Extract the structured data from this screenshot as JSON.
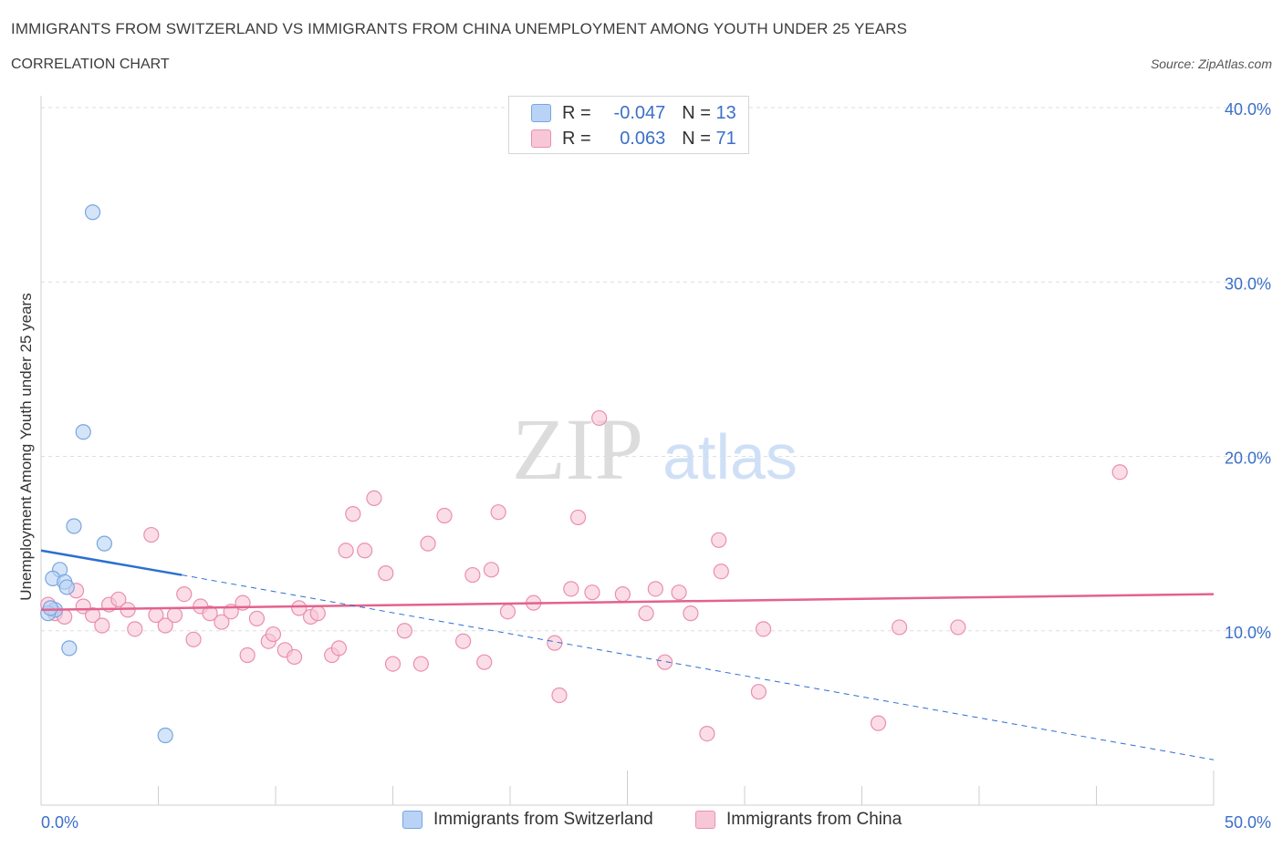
{
  "title": "IMMIGRANTS FROM SWITZERLAND VS IMMIGRANTS FROM CHINA UNEMPLOYMENT AMONG YOUTH UNDER 25 YEARS",
  "subtitle": "CORRELATION CHART",
  "source": "Source: ZipAtlas.com",
  "watermark": {
    "zip": "ZIP",
    "atlas": "atlas"
  },
  "colors": {
    "switzerland_fill": "#b8d3f5",
    "switzerland_stroke": "#7aa5e0",
    "switzerland_line": "#2c6fd1",
    "china_fill": "#f8c7d7",
    "china_stroke": "#ea8fae",
    "china_line": "#e3628e",
    "axis_text": "#3b6fc9",
    "grid": "#dedede"
  },
  "legend": {
    "rows": [
      {
        "r_label": "R =",
        "r_value": "-0.047",
        "n_label": "N =",
        "n_value": "13"
      },
      {
        "r_label": "R =",
        "r_value": "0.063",
        "n_label": "N =",
        "n_value": "71"
      }
    ]
  },
  "bottom_legend": {
    "switzerland": "Immigrants from Switzerland",
    "china": "Immigrants from China"
  },
  "chart_data": {
    "type": "scatter",
    "xlabel": "",
    "ylabel": "Unemployment Among Youth under 25 years",
    "xlim": [
      0,
      50
    ],
    "ylim": [
      0,
      40
    ],
    "x_tick_labels": [
      "0.0%",
      "50.0%"
    ],
    "y_ticks": [
      10,
      20,
      30,
      40
    ],
    "y_tick_labels": [
      "10.0%",
      "20.0%",
      "30.0%",
      "40.0%"
    ],
    "grid": true,
    "legend_position": "top-center",
    "series": [
      {
        "name": "Immigrants from Switzerland",
        "points": [
          [
            2.2,
            34.0
          ],
          [
            1.8,
            21.4
          ],
          [
            1.4,
            16.0
          ],
          [
            2.7,
            15.0
          ],
          [
            0.8,
            13.5
          ],
          [
            0.5,
            13.0
          ],
          [
            1.0,
            12.8
          ],
          [
            1.1,
            12.5
          ],
          [
            0.6,
            11.2
          ],
          [
            0.3,
            11.0
          ],
          [
            0.4,
            11.3
          ],
          [
            1.2,
            9.0
          ],
          [
            5.3,
            4.0
          ]
        ],
        "trend": {
          "x": [
            0,
            6
          ],
          "y": [
            14.6,
            13.2
          ],
          "dashed_extension": {
            "x": [
              6,
              50
            ],
            "y": [
              13.2,
              2.6
            ]
          }
        }
      },
      {
        "name": "Immigrants from China",
        "points": [
          [
            0.3,
            11.5
          ],
          [
            0.6,
            11.0
          ],
          [
            1.0,
            10.8
          ],
          [
            1.5,
            12.3
          ],
          [
            1.8,
            11.4
          ],
          [
            2.2,
            10.9
          ],
          [
            2.6,
            10.3
          ],
          [
            2.9,
            11.5
          ],
          [
            3.3,
            11.8
          ],
          [
            3.7,
            11.2
          ],
          [
            4.0,
            10.1
          ],
          [
            4.7,
            15.5
          ],
          [
            4.9,
            10.9
          ],
          [
            5.3,
            10.3
          ],
          [
            5.7,
            10.9
          ],
          [
            6.1,
            12.1
          ],
          [
            6.5,
            9.5
          ],
          [
            6.8,
            11.4
          ],
          [
            7.2,
            11.0
          ],
          [
            7.7,
            10.5
          ],
          [
            8.1,
            11.1
          ],
          [
            8.6,
            11.6
          ],
          [
            8.8,
            8.6
          ],
          [
            9.2,
            10.7
          ],
          [
            9.7,
            9.4
          ],
          [
            9.9,
            9.8
          ],
          [
            10.4,
            8.9
          ],
          [
            10.8,
            8.5
          ],
          [
            11.0,
            11.3
          ],
          [
            11.5,
            10.8
          ],
          [
            11.8,
            11.0
          ],
          [
            12.4,
            8.6
          ],
          [
            12.7,
            9.0
          ],
          [
            13.0,
            14.6
          ],
          [
            13.3,
            16.7
          ],
          [
            13.8,
            14.6
          ],
          [
            14.2,
            17.6
          ],
          [
            14.7,
            13.3
          ],
          [
            15.0,
            8.1
          ],
          [
            15.5,
            10.0
          ],
          [
            16.2,
            8.1
          ],
          [
            16.5,
            15.0
          ],
          [
            17.2,
            16.6
          ],
          [
            18.0,
            9.4
          ],
          [
            18.4,
            13.2
          ],
          [
            18.9,
            8.2
          ],
          [
            19.2,
            13.5
          ],
          [
            19.5,
            16.8
          ],
          [
            19.9,
            11.1
          ],
          [
            21.0,
            11.6
          ],
          [
            21.9,
            9.3
          ],
          [
            22.1,
            6.3
          ],
          [
            22.6,
            12.4
          ],
          [
            22.9,
            16.5
          ],
          [
            23.5,
            12.2
          ],
          [
            23.8,
            22.2
          ],
          [
            24.8,
            12.1
          ],
          [
            25.8,
            11.0
          ],
          [
            26.2,
            12.4
          ],
          [
            26.6,
            8.2
          ],
          [
            27.2,
            12.2
          ],
          [
            27.7,
            11.0
          ],
          [
            28.4,
            4.1
          ],
          [
            28.9,
            15.2
          ],
          [
            29.0,
            13.4
          ],
          [
            30.6,
            6.5
          ],
          [
            30.8,
            10.1
          ],
          [
            35.7,
            4.7
          ],
          [
            36.6,
            10.2
          ],
          [
            39.1,
            10.2
          ],
          [
            46.0,
            19.1
          ]
        ],
        "trend": {
          "x": [
            0,
            50
          ],
          "y": [
            11.2,
            12.1
          ]
        }
      }
    ]
  }
}
